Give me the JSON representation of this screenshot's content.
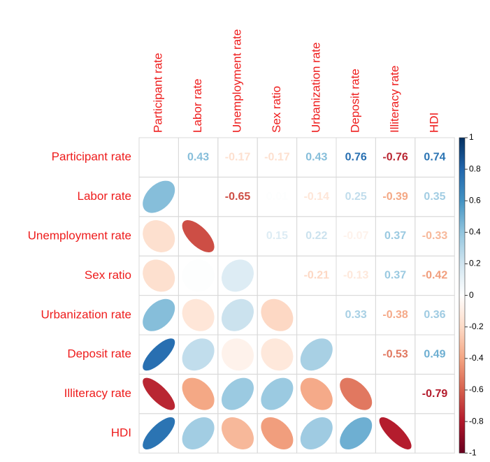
{
  "chart_data": {
    "type": "corrplot",
    "variables": [
      "Participant rate",
      "Labor rate",
      "Unemployment rate",
      "Sex ratio",
      "Urbanization rate",
      "Deposit rate",
      "Illiteracy rate",
      "HDI"
    ],
    "matrix": [
      [
        null,
        0.43,
        -0.17,
        -0.17,
        0.43,
        0.76,
        -0.76,
        0.74
      ],
      [
        0.43,
        null,
        -0.65,
        0.01,
        -0.14,
        0.25,
        -0.39,
        0.35
      ],
      [
        -0.17,
        -0.65,
        null,
        0.15,
        0.22,
        -0.07,
        0.37,
        -0.33
      ],
      [
        -0.17,
        0.01,
        0.15,
        null,
        -0.21,
        -0.13,
        0.37,
        -0.42
      ],
      [
        0.43,
        -0.14,
        0.22,
        -0.21,
        null,
        0.33,
        -0.38,
        0.36
      ],
      [
        0.76,
        0.25,
        -0.07,
        -0.13,
        0.33,
        null,
        -0.53,
        0.49
      ],
      [
        -0.76,
        -0.39,
        0.37,
        0.37,
        -0.38,
        -0.53,
        null,
        -0.79
      ],
      [
        0.74,
        0.35,
        -0.33,
        -0.42,
        0.36,
        0.49,
        -0.79,
        null
      ]
    ],
    "clim": [
      -1,
      1
    ],
    "colors": [
      "#67001F",
      "#B2182B",
      "#D6604D",
      "#F4A582",
      "#FDDBC7",
      "#FFFFFF",
      "#D1E5F0",
      "#92C5DE",
      "#4393C3",
      "#2166AC",
      "#053061"
    ],
    "colorbar_ticks": [
      1,
      0.8,
      0.6,
      0.4,
      0.2,
      0,
      -0.2,
      -0.4,
      -0.6,
      -0.8,
      -1
    ],
    "label_color": "#ee1c1c"
  }
}
